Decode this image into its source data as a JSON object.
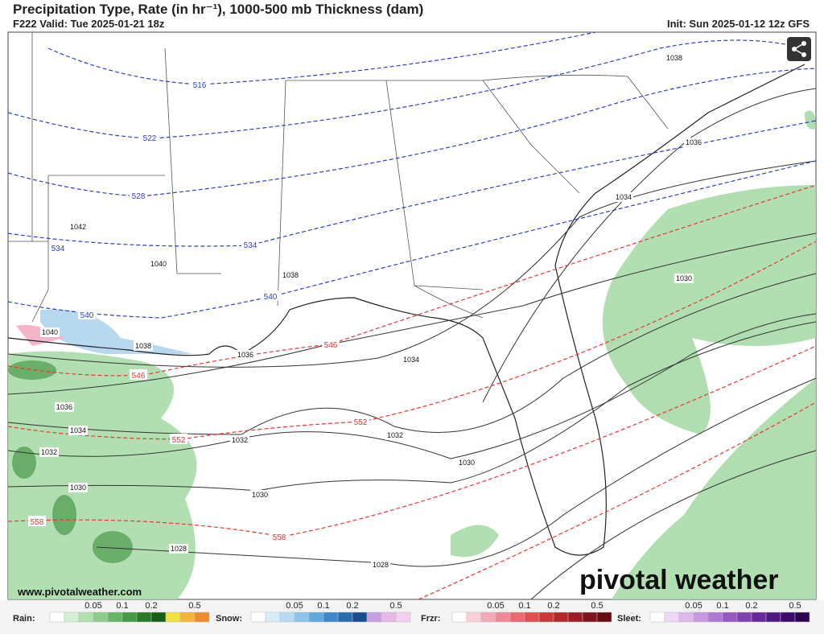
{
  "header": {
    "title": "Precipitation Type, Rate (in hr⁻¹), 1000-500 mb Thickness (dam)",
    "valid": "F222 Valid: Tue 2025-01-21 18z",
    "init": "Init: Sun 2025-01-12 12z GFS"
  },
  "map": {
    "thickness_labels": [
      "516",
      "522",
      "528",
      "534",
      "534",
      "540",
      "540",
      "546",
      "546",
      "552",
      "552",
      "558",
      "558"
    ],
    "pressure_labels": [
      "1038",
      "1036",
      "1034",
      "1042",
      "1040",
      "1038",
      "1040",
      "1038",
      "1036",
      "1034",
      "1030",
      "1036",
      "1034",
      "1032",
      "1032",
      "1032",
      "1030",
      "1030",
      "1030",
      "1028",
      "1028"
    ],
    "website": "www.pivotalweather.com",
    "logo": "pivotal weather"
  },
  "legend": [
    {
      "name": "Rain:",
      "ticks": [
        "0.05",
        "0.1",
        "0.2",
        "0.5"
      ]
    },
    {
      "name": "Snow:",
      "ticks": [
        "0.05",
        "0.1",
        "0.2",
        "0.5"
      ]
    },
    {
      "name": "Frzr:",
      "ticks": [
        "0.05",
        "0.1",
        "0.2",
        "0.5"
      ]
    },
    {
      "name": "Sleet:",
      "ticks": [
        "0.05",
        "0.1",
        "0.2",
        "0.5"
      ]
    }
  ]
}
